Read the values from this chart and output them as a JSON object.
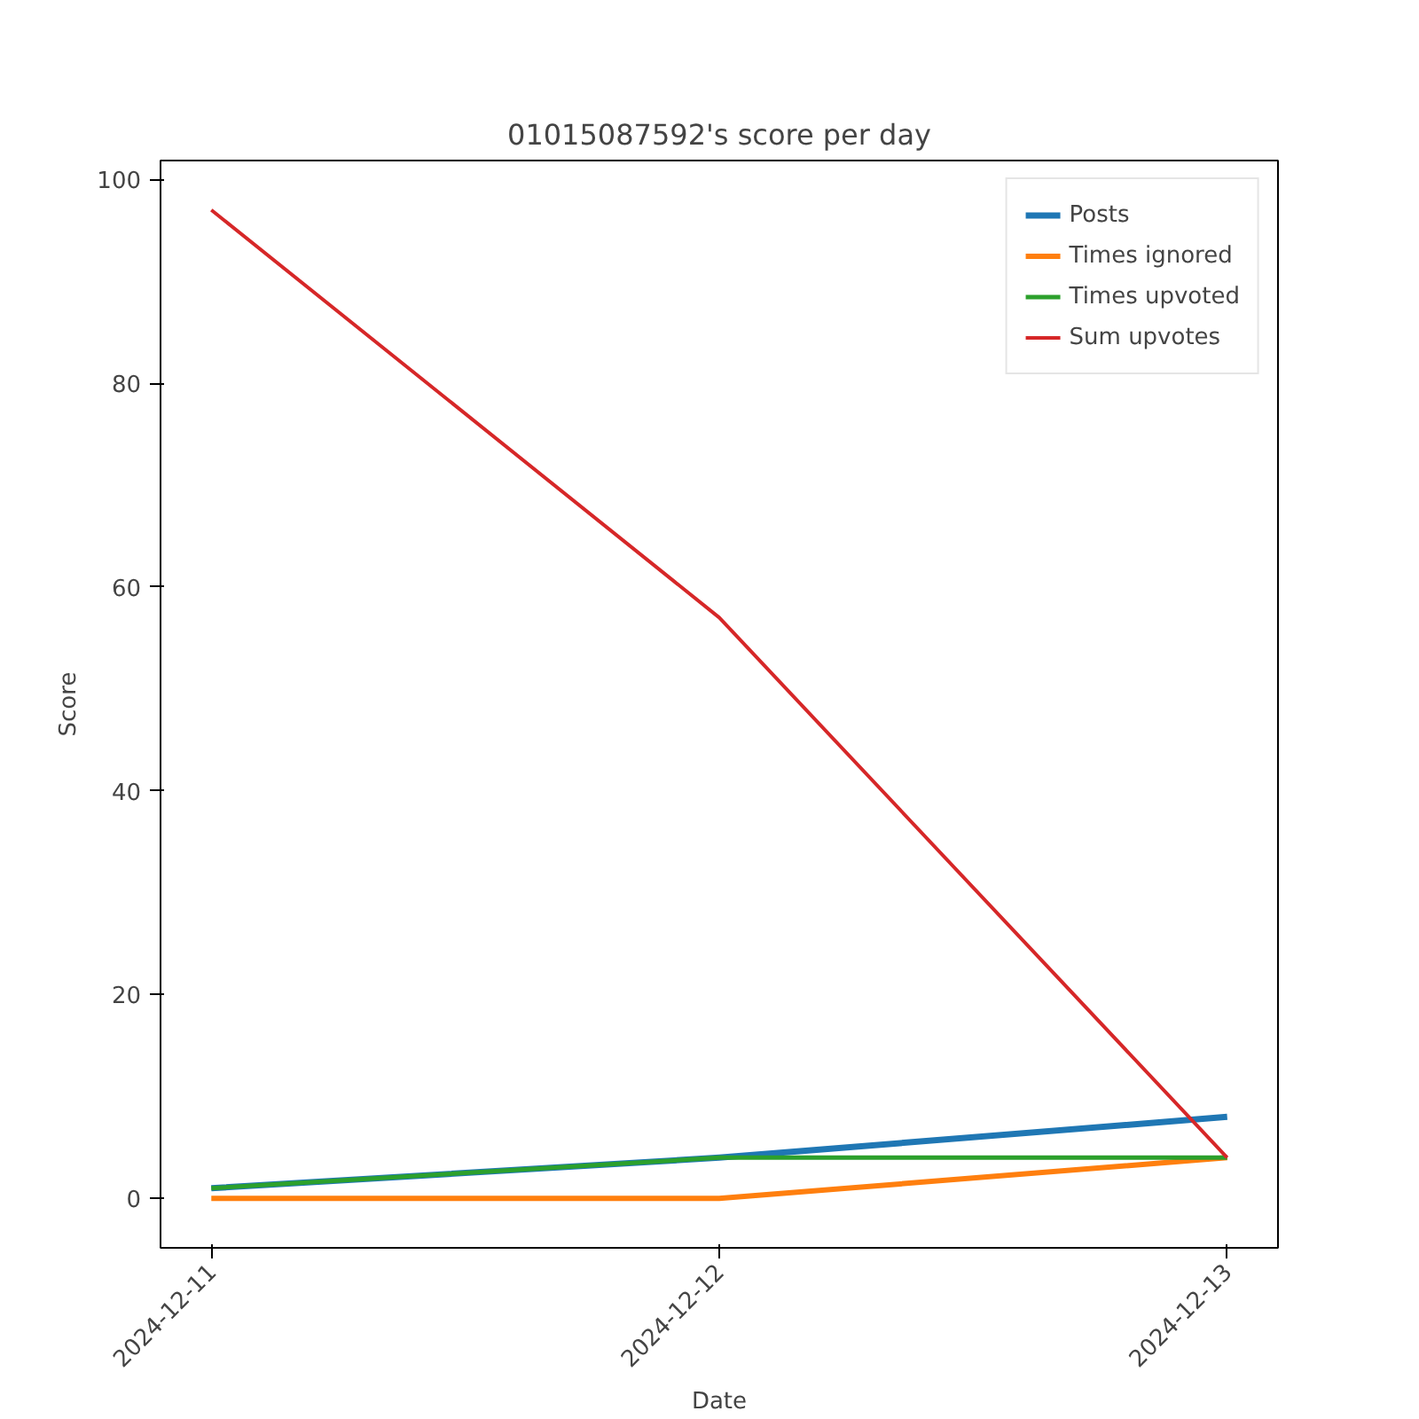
{
  "chart_data": {
    "type": "line",
    "title": "01015087592's score per day",
    "xlabel": "Date",
    "ylabel": "Score",
    "x": [
      "2024-12-11",
      "2024-12-12",
      "2024-12-13"
    ],
    "xlim": [
      "2024-12-10T21:36",
      "2024-12-13T02:24"
    ],
    "xticks": [
      "2024-12-11",
      "2024-12-12",
      "2024-12-13"
    ],
    "ylim": [
      -4.85,
      101.85
    ],
    "yticks": [
      0,
      20,
      40,
      60,
      80,
      100
    ],
    "series": [
      {
        "name": "Posts",
        "color": "#1f77b4",
        "values": [
          1,
          4,
          8
        ]
      },
      {
        "name": "Times ignored",
        "color": "#ff7f0e",
        "values": [
          0,
          0,
          4
        ]
      },
      {
        "name": "Times upvoted",
        "color": "#2ca02c",
        "values": [
          1,
          4,
          4
        ]
      },
      {
        "name": "Sum upvotes",
        "color": "#d62728",
        "values": [
          97,
          57,
          4
        ]
      }
    ],
    "grid": false,
    "legend": "top right",
    "marker": "none",
    "line_style": "solid"
  }
}
